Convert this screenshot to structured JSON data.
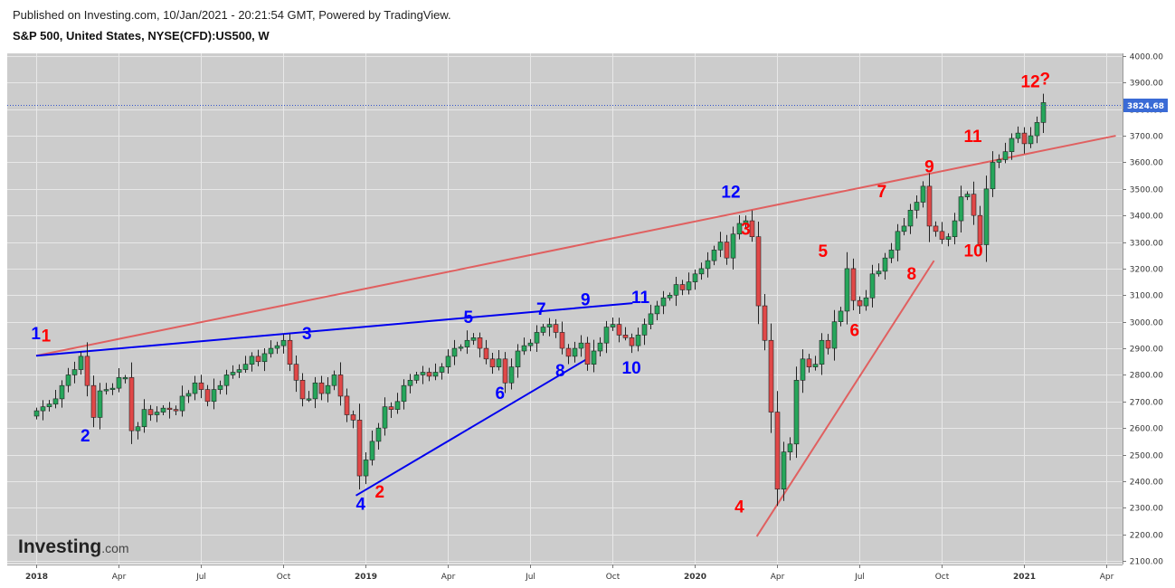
{
  "header": {
    "published": "Published on Investing.com, 10/Jan/2021 - 20:21:54 GMT, Powered by TradingView.",
    "symbol": "S&P 500, United States, NYSE(CFD):US500, W"
  },
  "watermark": {
    "brand": "Investing",
    "suffix": ".com"
  },
  "colors": {
    "plot_bg": "#cccccc",
    "grid": "#e8e8e8",
    "up": "#26a65b",
    "down": "#e04848",
    "wave_red": "#ff0000",
    "wave_blue": "#0000ff",
    "trend_red": "#e06060",
    "trend_blue": "#0000ee",
    "price_line": "#3355cc",
    "price_tag_bg": "#3a6bd6"
  },
  "chart_data": {
    "type": "candlestick",
    "title": "S&P 500, United States, NYSE(CFD):US500, W",
    "y_ticks": [
      "4000.00",
      "3900.00",
      "3800.00",
      "3700.00",
      "3600.00",
      "3500.00",
      "3400.00",
      "3300.00",
      "3200.00",
      "3100.00",
      "3000.00",
      "2900.00",
      "2800.00",
      "2700.00",
      "2600.00",
      "2500.00",
      "2400.00",
      "2300.00",
      "2200.00",
      "2100.00"
    ],
    "y_tick_values": [
      4000,
      3900,
      3800,
      3700,
      3600,
      3500,
      3400,
      3300,
      3200,
      3100,
      3000,
      2900,
      2800,
      2700,
      2600,
      2500,
      2400,
      2300,
      2200,
      2100
    ],
    "ylim": [
      2090,
      4010
    ],
    "x_ticks": [
      {
        "label": "2018",
        "week": 0
      },
      {
        "label": "Apr",
        "week": 13
      },
      {
        "label": "Jul",
        "week": 26
      },
      {
        "label": "Oct",
        "week": 39
      },
      {
        "label": "2019",
        "week": 52
      },
      {
        "label": "Apr",
        "week": 65
      },
      {
        "label": "Jul",
        "week": 78
      },
      {
        "label": "Oct",
        "week": 91
      },
      {
        "label": "2020",
        "week": 104
      },
      {
        "label": "Apr",
        "week": 117
      },
      {
        "label": "Jul",
        "week": 130
      },
      {
        "label": "Oct",
        "week": 143
      },
      {
        "label": "2021",
        "week": 156
      },
      {
        "label": "Apr",
        "week": 169
      }
    ],
    "week_range": [
      -4.3,
      172
    ],
    "last_price": "3824.68",
    "last_price_value": 3824.68,
    "closes": [
      2665,
      2680,
      2690,
      2710,
      2760,
      2800,
      2820,
      2870,
      2760,
      2640,
      2740,
      2745,
      2750,
      2790,
      2790,
      2590,
      2605,
      2670,
      2650,
      2660,
      2675,
      2670,
      2665,
      2720,
      2730,
      2770,
      2745,
      2700,
      2745,
      2760,
      2800,
      2810,
      2820,
      2840,
      2870,
      2850,
      2880,
      2900,
      2910,
      2930,
      2840,
      2780,
      2710,
      2710,
      2770,
      2730,
      2760,
      2800,
      2720,
      2650,
      2630,
      2420,
      2480,
      2550,
      2600,
      2680,
      2670,
      2700,
      2760,
      2780,
      2800,
      2810,
      2795,
      2810,
      2830,
      2870,
      2900,
      2905,
      2930,
      2940,
      2900,
      2860,
      2830,
      2860,
      2770,
      2830,
      2890,
      2910,
      2920,
      2960,
      2980,
      2990,
      2960,
      2900,
      2870,
      2900,
      2920,
      2840,
      2890,
      2920,
      2980,
      2990,
      2950,
      2940,
      2910,
      2950,
      2990,
      3030,
      3060,
      3090,
      3100,
      3140,
      3120,
      3150,
      3180,
      3200,
      3230,
      3270,
      3300,
      3240,
      3330,
      3370,
      3380,
      3320,
      3060,
      2930,
      2660,
      2370,
      2510,
      2540,
      2780,
      2860,
      2830,
      2840,
      2930,
      2900,
      3000,
      3040,
      3200,
      3080,
      3060,
      3090,
      3180,
      3190,
      3240,
      3270,
      3340,
      3360,
      3420,
      3450,
      3510,
      3360,
      3340,
      3310,
      3320,
      3380,
      3470,
      3480,
      3400,
      3290,
      3500,
      3600,
      3610,
      3640,
      3690,
      3710,
      3670,
      3700,
      3750,
      3824.68
    ],
    "trendlines": [
      {
        "color": "red",
        "from": {
          "week": 0,
          "price": 2872
        },
        "to": {
          "week": 170.5,
          "price": 3700
        }
      },
      {
        "color": "red",
        "from": {
          "week": 113.8,
          "price": 2192
        },
        "to": {
          "week": 141.8,
          "price": 3230
        }
      },
      {
        "color": "blue",
        "from": {
          "week": 0,
          "price": 2872
        },
        "to": {
          "week": 94.2,
          "price": 3070
        }
      },
      {
        "color": "blue",
        "from": {
          "week": 50.5,
          "price": 2346
        },
        "to": {
          "week": 87,
          "price": 2860
        }
      }
    ],
    "wave_labels": [
      {
        "text": "1",
        "color": "red",
        "week": 0.8,
        "price": 2925
      },
      {
        "text": "1",
        "color": "blue",
        "week": -0.8,
        "price": 2935
      },
      {
        "text": "2",
        "color": "blue",
        "week": 7,
        "price": 2550
      },
      {
        "text": "3",
        "color": "blue",
        "week": 42,
        "price": 2935
      },
      {
        "text": "4",
        "color": "blue",
        "week": 50.5,
        "price": 2293
      },
      {
        "text": "2",
        "color": "red",
        "week": 53.5,
        "price": 2338
      },
      {
        "text": "5",
        "color": "blue",
        "week": 67.5,
        "price": 2995
      },
      {
        "text": "6",
        "color": "blue",
        "week": 72.5,
        "price": 2710
      },
      {
        "text": "7",
        "color": "blue",
        "week": 79,
        "price": 3027
      },
      {
        "text": "8",
        "color": "blue",
        "week": 82,
        "price": 2795
      },
      {
        "text": "9",
        "color": "blue",
        "week": 86,
        "price": 3062
      },
      {
        "text": "10",
        "color": "blue",
        "week": 92.5,
        "price": 2805
      },
      {
        "text": "11",
        "color": "blue",
        "week": 94,
        "price": 3070
      },
      {
        "text": "12",
        "color": "blue",
        "week": 108.2,
        "price": 3467
      },
      {
        "text": "3",
        "color": "red",
        "week": 111.3,
        "price": 3327
      },
      {
        "text": "4",
        "color": "red",
        "week": 110.3,
        "price": 2282
      },
      {
        "text": "5",
        "color": "red",
        "week": 123.5,
        "price": 3244
      },
      {
        "text": "6",
        "color": "red",
        "week": 128.5,
        "price": 2947
      },
      {
        "text": "7",
        "color": "red",
        "week": 132.8,
        "price": 3468
      },
      {
        "text": "8",
        "color": "red",
        "week": 137.5,
        "price": 3159
      },
      {
        "text": "9",
        "color": "red",
        "week": 140.3,
        "price": 3562
      },
      {
        "text": "10",
        "color": "red",
        "week": 146.5,
        "price": 3245
      },
      {
        "text": "11",
        "color": "red",
        "week": 146.5,
        "price": 3677
      },
      {
        "text": "12",
        "color": "red",
        "week": 155.5,
        "price": 3883
      },
      {
        "text": "?",
        "color": "red",
        "week": 158.5,
        "price": 3892
      }
    ]
  }
}
